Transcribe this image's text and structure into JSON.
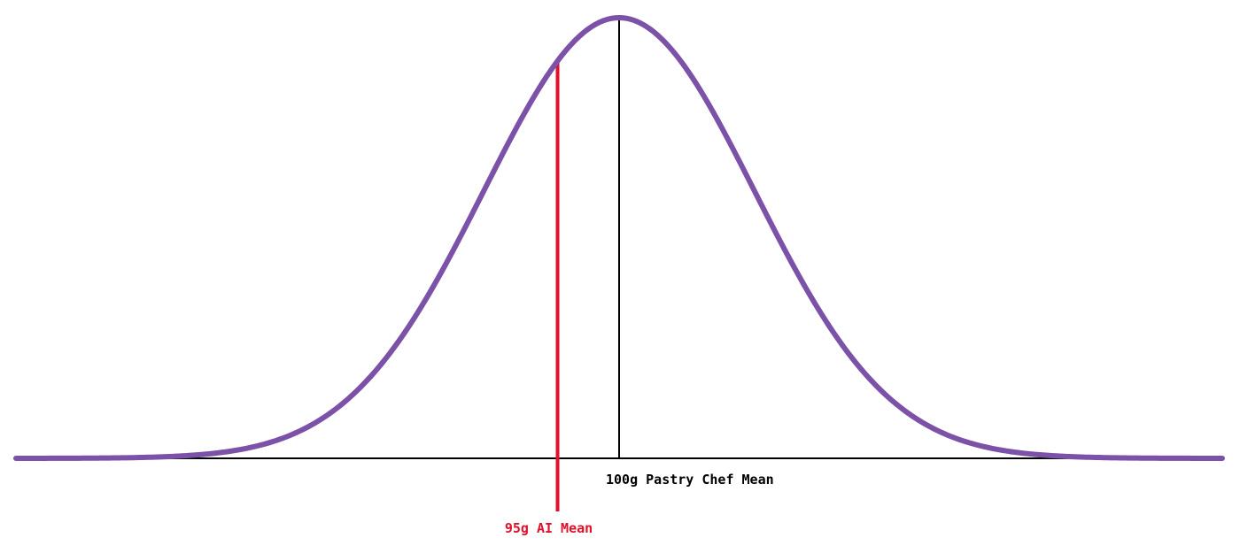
{
  "chart_data": {
    "type": "line",
    "title": "",
    "xlabel": "",
    "ylabel": "",
    "grid": false,
    "legend": "none",
    "series": [
      {
        "color": "#7b52a8",
        "distribution": "normal",
        "mean": 100,
        "sd": 11
      }
    ],
    "xlim": [
      51,
      149
    ],
    "markers": [
      {
        "id": "chef",
        "x": 100,
        "label": "100g Pastry Chef Mean",
        "color": "#000000"
      },
      {
        "id": "ai",
        "x": 95,
        "label": "95g AI Mean",
        "color": "#e0102a"
      }
    ],
    "baseline_color": "#000000"
  }
}
